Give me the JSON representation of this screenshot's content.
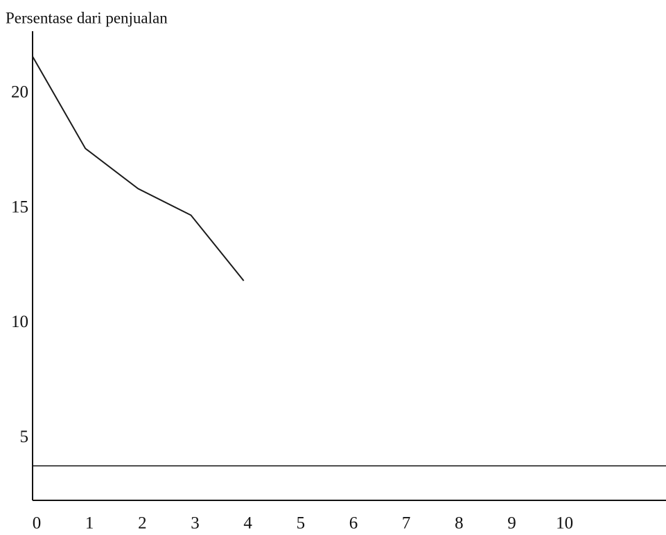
{
  "chart_data": {
    "type": "line",
    "title": "Persentase dari penjualan",
    "x": [
      0,
      1,
      2,
      3,
      4
    ],
    "series": [
      {
        "color": "#1a1a1a",
        "values": [
          21.6,
          17.6,
          15.85,
          14.7,
          11.85
        ]
      }
    ],
    "xlim": [
      0,
      12
    ],
    "xticks": [
      0,
      1,
      2,
      3,
      4,
      5,
      6,
      7,
      8,
      9,
      10
    ],
    "ylim": [
      2.3,
      22.7
    ],
    "yticks": [
      5,
      10,
      15,
      20
    ],
    "hline": 3.8,
    "grid": false
  }
}
